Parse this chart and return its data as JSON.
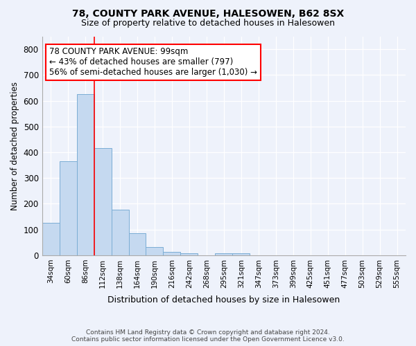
{
  "title1": "78, COUNTY PARK AVENUE, HALESOWEN, B62 8SX",
  "title2": "Size of property relative to detached houses in Halesowen",
  "xlabel": "Distribution of detached houses by size in Halesowen",
  "ylabel": "Number of detached properties",
  "bar_color": "#c5d9f0",
  "bar_edge_color": "#7badd4",
  "categories": [
    "34sqm",
    "60sqm",
    "86sqm",
    "112sqm",
    "138sqm",
    "164sqm",
    "190sqm",
    "216sqm",
    "242sqm",
    "268sqm",
    "295sqm",
    "321sqm",
    "347sqm",
    "373sqm",
    "399sqm",
    "425sqm",
    "451sqm",
    "477sqm",
    "503sqm",
    "529sqm",
    "555sqm"
  ],
  "values": [
    126,
    365,
    625,
    415,
    178,
    85,
    33,
    14,
    8,
    0,
    7,
    8,
    0,
    0,
    0,
    0,
    0,
    0,
    0,
    0,
    0
  ],
  "ylim": [
    0,
    850
  ],
  "yticks": [
    0,
    100,
    200,
    300,
    400,
    500,
    600,
    700,
    800
  ],
  "annotation_title": "78 COUNTY PARK AVENUE: 99sqm",
  "annotation_line1": "← 43% of detached houses are smaller (797)",
  "annotation_line2": "56% of semi-detached houses are larger (1,030) →",
  "vline_bin": 2,
  "footer1": "Contains HM Land Registry data © Crown copyright and database right 2024.",
  "footer2": "Contains public sector information licensed under the Open Government Licence v3.0.",
  "background_color": "#eef2fb",
  "grid_color": "#d0d8ee"
}
